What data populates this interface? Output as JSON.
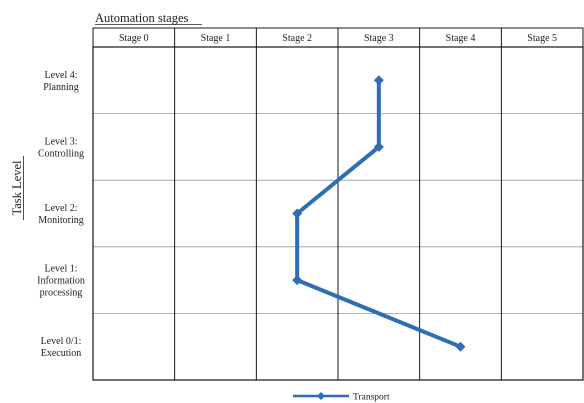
{
  "chart_data": {
    "type": "line",
    "title": "Automation stages",
    "ylabel": "Task Level",
    "x_categories": [
      "Stage 0",
      "Stage 1",
      "Stage 2",
      "Stage 3",
      "Stage 4",
      "Stage 5"
    ],
    "y_categories": [
      [
        "Level 4:",
        "Planning"
      ],
      [
        "Level 3:",
        "Controlling"
      ],
      [
        "Level 2:",
        "Monitoring"
      ],
      [
        "Level 1:",
        "Information",
        "processing"
      ],
      [
        "Level 0/1:",
        "Execution"
      ]
    ],
    "series": [
      {
        "name": "Transport",
        "color": "#2f6db5",
        "marker": "diamond",
        "points": [
          {
            "level": "Level 4: Planning",
            "stage": 3
          },
          {
            "level": "Level 3: Controlling",
            "stage": 3
          },
          {
            "level": "Level 2: Monitoring",
            "stage": 2
          },
          {
            "level": "Level 1: Information processing",
            "stage": 2
          },
          {
            "level": "Level 0/1: Execution",
            "stage": 4
          }
        ]
      }
    ],
    "grid": true,
    "legend_position": "bottom-center"
  },
  "colors": {
    "series": "#2f6db5",
    "grid": "#9a9a9a",
    "frame": "#000000"
  }
}
